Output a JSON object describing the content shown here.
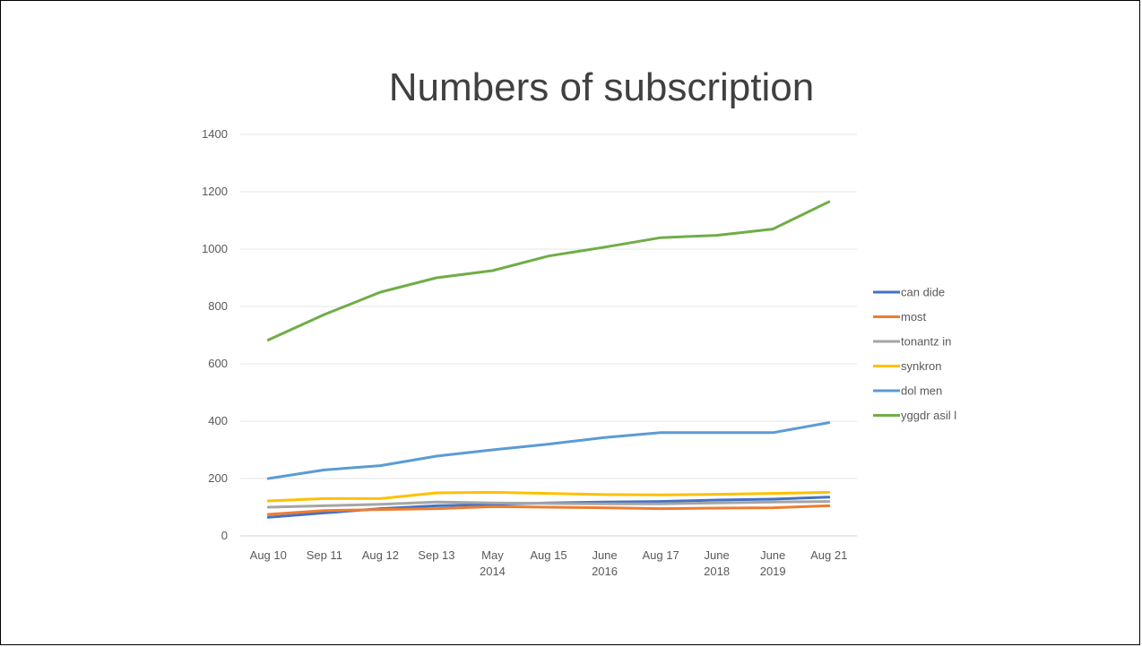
{
  "chart_data": {
    "type": "line",
    "title": "Numbers of subscription",
    "xlabel": "",
    "ylabel": "",
    "ylim": [
      0,
      1400
    ],
    "yticks": [
      0,
      200,
      400,
      600,
      800,
      1000,
      1200,
      1400
    ],
    "grid": true,
    "legend_position": "right",
    "categories": [
      [
        "Aug 10"
      ],
      [
        "Sep 11"
      ],
      [
        "Aug 12"
      ],
      [
        "Sep 13"
      ],
      [
        "May",
        "2014"
      ],
      [
        "Aug 15"
      ],
      [
        "June",
        "2016"
      ],
      [
        "Aug 17"
      ],
      [
        "June",
        "2018"
      ],
      [
        "June",
        "2019"
      ],
      [
        "Aug 21"
      ]
    ],
    "series": [
      {
        "name": "can dide",
        "color": "#4472C4",
        "values": [
          65,
          80,
          95,
          105,
          110,
          115,
          118,
          120,
          125,
          128,
          135
        ]
      },
      {
        "name": "most",
        "color": "#ED7D31",
        "values": [
          75,
          88,
          92,
          95,
          102,
          100,
          98,
          95,
          97,
          98,
          105
        ]
      },
      {
        "name": "tonantz in",
        "color": "#A5A5A5",
        "values": [
          100,
          105,
          110,
          118,
          115,
          113,
          112,
          112,
          115,
          118,
          120
        ]
      },
      {
        "name": "synkron",
        "color": "#FFC000",
        "values": [
          122,
          130,
          130,
          150,
          152,
          148,
          144,
          143,
          145,
          148,
          152
        ]
      },
      {
        "name": "dol men",
        "color": "#5B9BD5",
        "values": [
          200,
          230,
          245,
          278,
          300,
          320,
          343,
          360,
          360,
          360,
          395
        ]
      },
      {
        "name": "yggdr asil l",
        "color": "#70AD47",
        "values": [
          683,
          772,
          850,
          900,
          925,
          976,
          1007,
          1040,
          1048,
          1070,
          1165
        ]
      }
    ]
  }
}
